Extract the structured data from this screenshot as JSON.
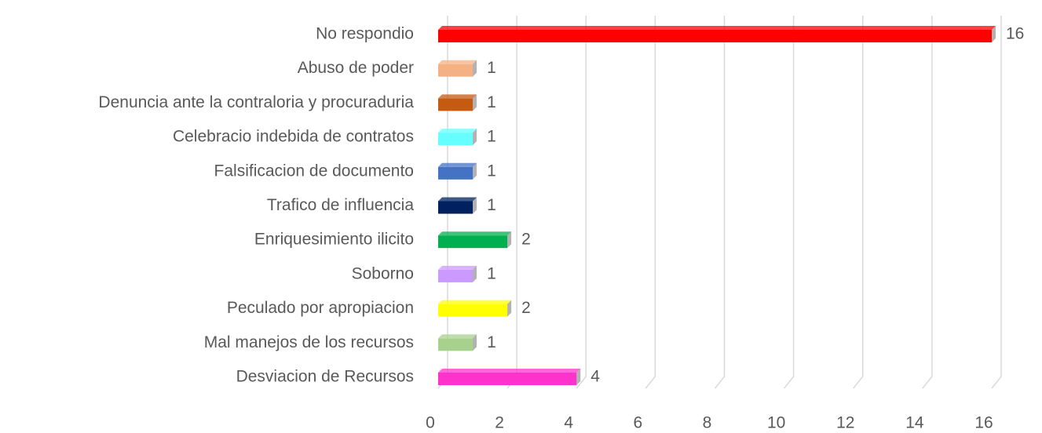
{
  "chart_data": {
    "type": "bar",
    "orientation": "horizontal",
    "three_d": true,
    "categories": [
      "No respondio",
      "Abuso de poder",
      "Denuncia ante la contraloria y procuraduria",
      "Celebracio indebida de contratos",
      "Falsificacion de documento",
      "Trafico de influencia",
      "Enriquesimiento ilicito",
      "Soborno",
      "Peculado por apropiacion",
      "Mal manejos de los recursos",
      "Desviacion de Recursos"
    ],
    "values": [
      16,
      1,
      1,
      1,
      1,
      1,
      2,
      1,
      2,
      1,
      4
    ],
    "colors": [
      "#ff0000",
      "#f4b183",
      "#c55a11",
      "#66ffff",
      "#4472c4",
      "#002060",
      "#00b050",
      "#cc99ff",
      "#ffff00",
      "#a9d18e",
      "#ff33cc"
    ],
    "xlim": [
      0,
      16
    ],
    "xticks": [
      0,
      2,
      4,
      6,
      8,
      10,
      12,
      14,
      16
    ],
    "grid": true,
    "data_labels": true
  }
}
